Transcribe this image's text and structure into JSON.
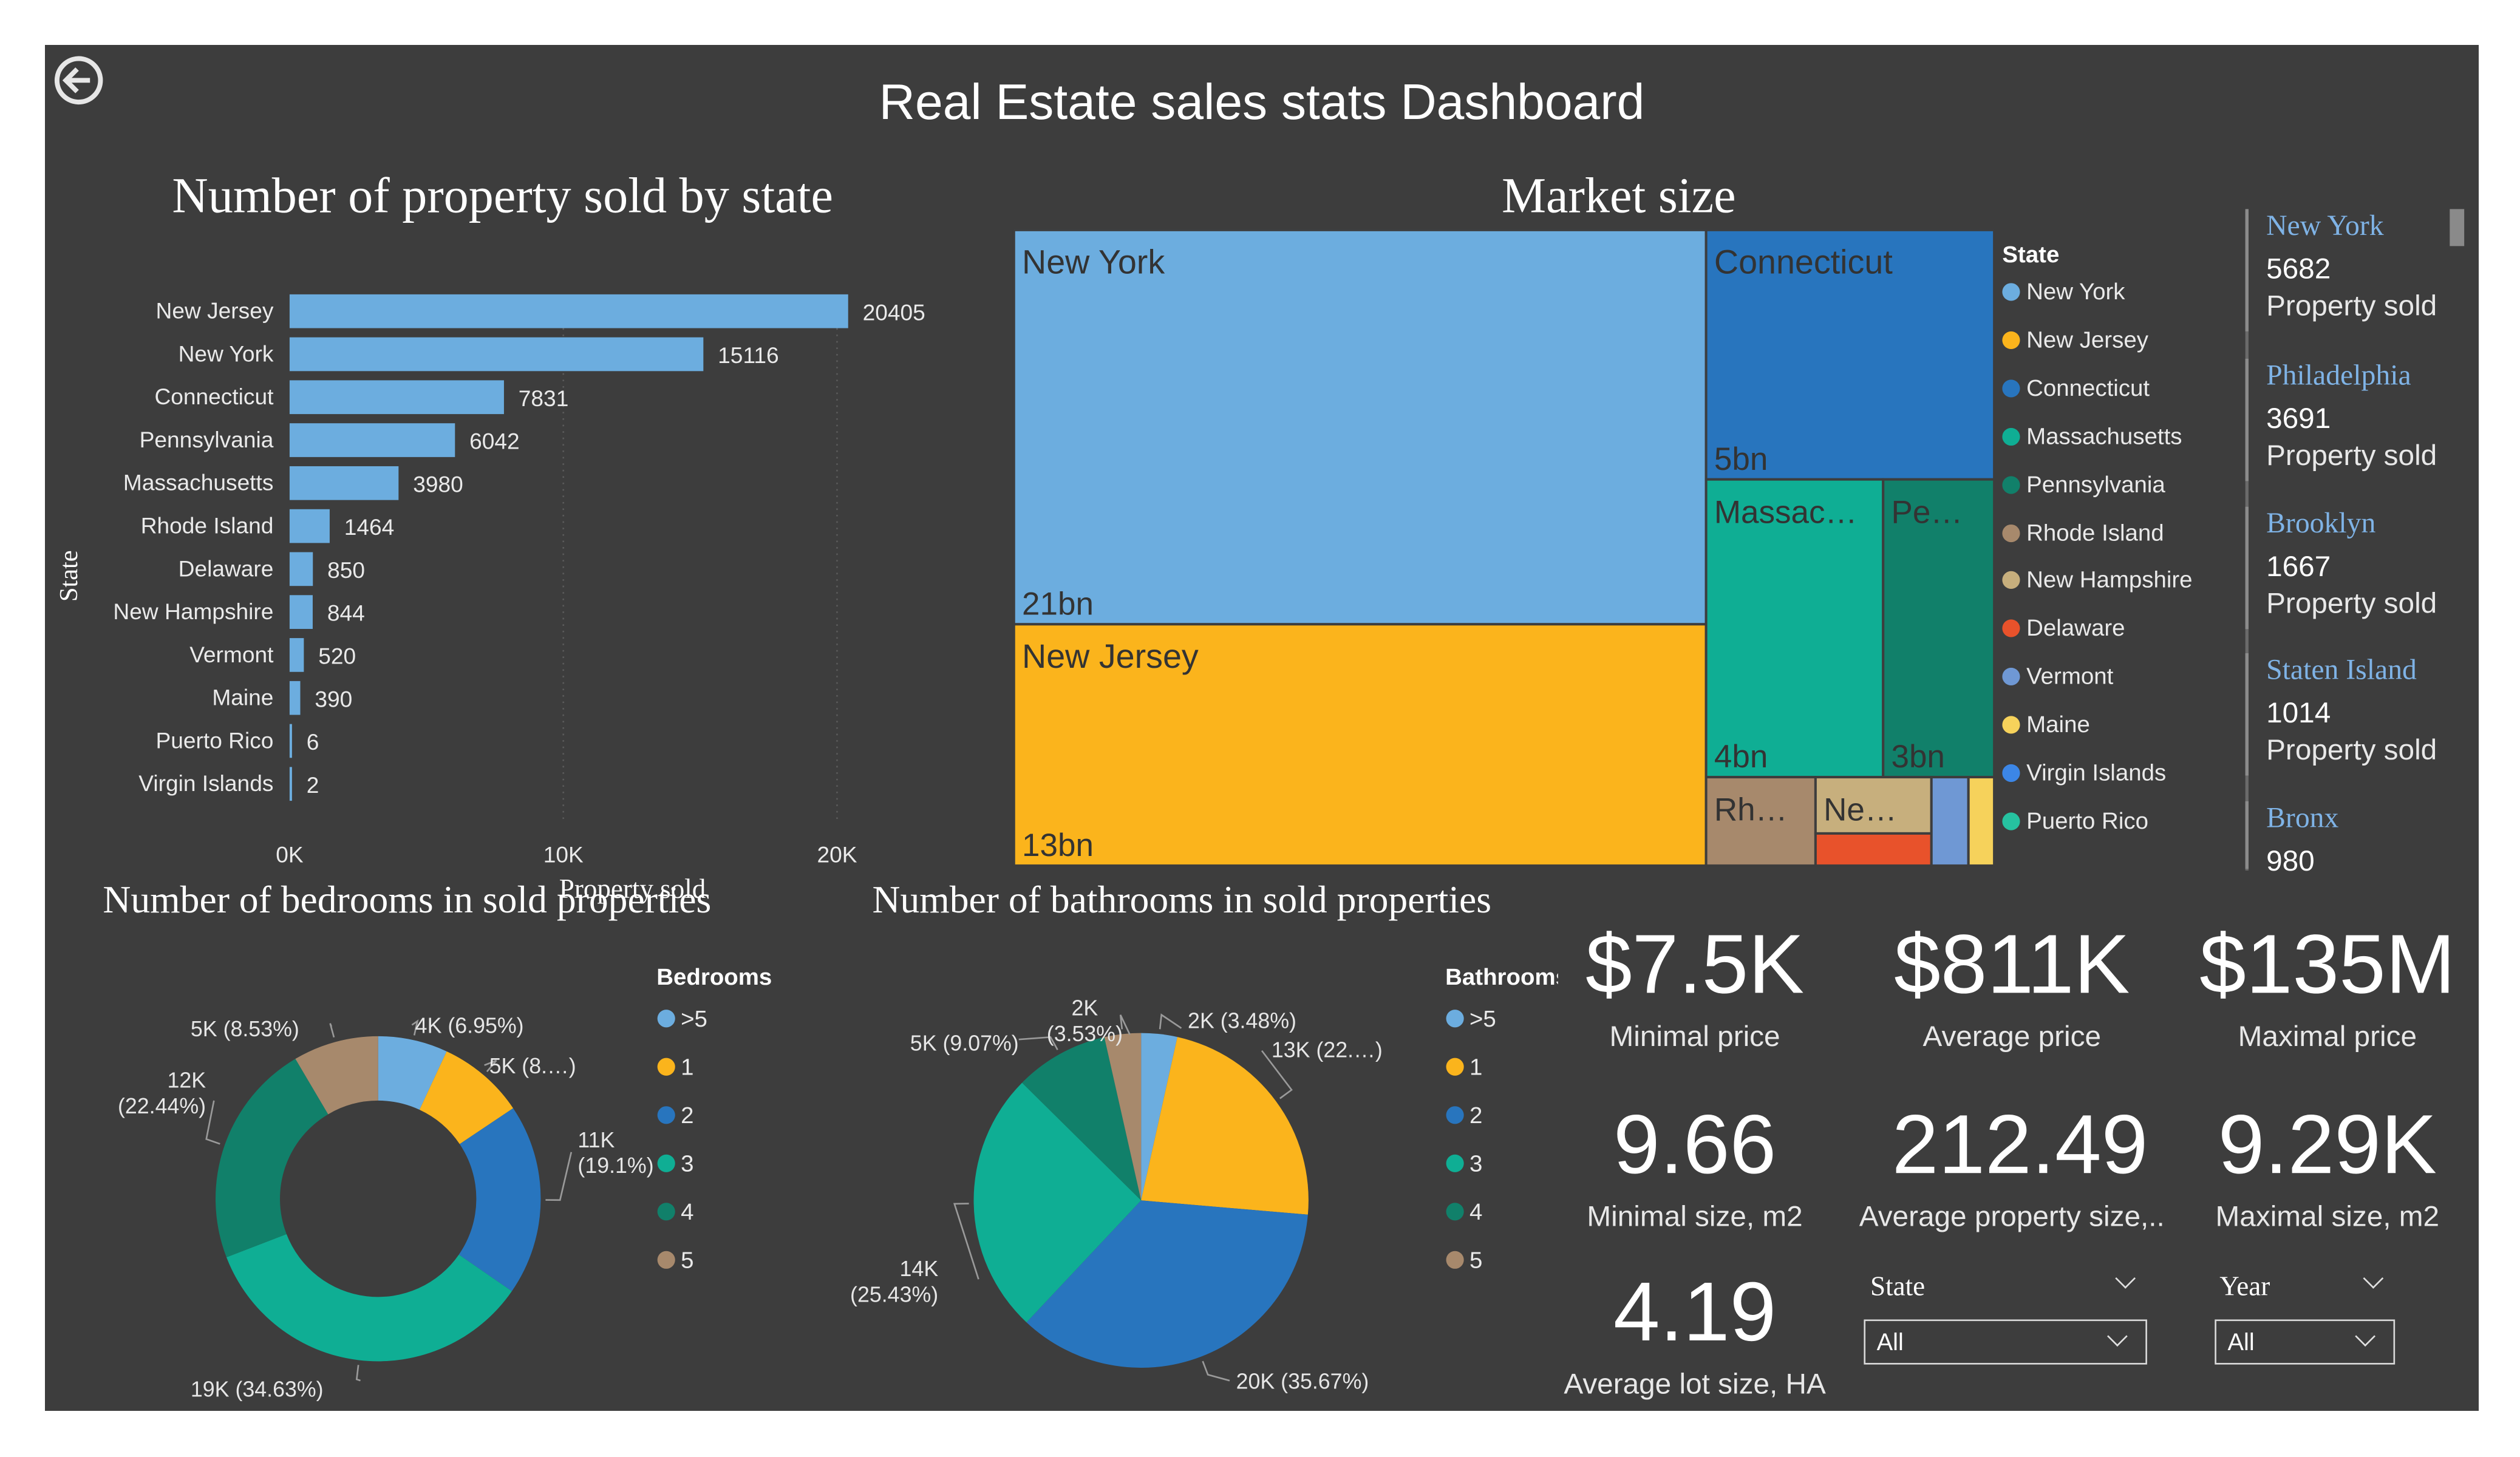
{
  "dashboard_title": "Real Estate sales stats Dashboard",
  "colors": {
    "background": "#3d3d3d",
    "bar": "#6caddf",
    "ny": "#6caddf",
    "nj": "#fbb41c",
    "ct": "#2875be",
    "ma": "#0fae94",
    "pa": "#11806a",
    "ri": "#a7896c",
    "nh": "#c7af7d",
    "de": "#e8522b",
    "vt": "#6f98d4",
    "me": "#f6d25b",
    "vi": "#3c86e6",
    "pr": "#26c2a0"
  },
  "bar_chart": {
    "title": "Number of property sold by state",
    "y_axis_label": "State",
    "x_axis_label": "Property sold",
    "chart_data": {
      "type": "bar",
      "orientation": "horizontal",
      "categories": [
        "New Jersey",
        "New York",
        "Connecticut",
        "Pennsylvania",
        "Massachusetts",
        "Rhode Island",
        "Delaware",
        "New Hampshire",
        "Vermont",
        "Maine",
        "Puerto Rico",
        "Virgin Islands"
      ],
      "values": [
        20405,
        15116,
        7831,
        6042,
        3980,
        1464,
        850,
        844,
        520,
        390,
        6,
        2
      ],
      "x_ticks": [
        "0K",
        "10K",
        "20K"
      ],
      "xlim": [
        0,
        20405
      ]
    }
  },
  "treemap": {
    "title": "Market size",
    "legend_title": "State",
    "chart_data": {
      "type": "treemap",
      "items": [
        {
          "name": "New York",
          "label": "New York",
          "value_label": "21bn",
          "color": "#6caddf"
        },
        {
          "name": "New Jersey",
          "label": "New Jersey",
          "value_label": "13bn",
          "color": "#fbb41c"
        },
        {
          "name": "Connecticut",
          "label": "Connecticut",
          "value_label": "5bn",
          "color": "#2875be"
        },
        {
          "name": "Massachusetts",
          "label": "Massac…",
          "value_label": "4bn",
          "color": "#0fae94"
        },
        {
          "name": "Pennsylvania",
          "label": "Pe…",
          "value_label": "3bn",
          "color": "#11806a"
        },
        {
          "name": "Rhode Island",
          "label": "Rh…",
          "value_label": "",
          "color": "#a7896c"
        },
        {
          "name": "New Hampshire",
          "label": "Ne…",
          "value_label": "",
          "color": "#c7af7d"
        },
        {
          "name": "Delaware",
          "label": "",
          "value_label": "",
          "color": "#e8522b"
        },
        {
          "name": "Vermont",
          "label": "",
          "value_label": "",
          "color": "#6f98d4"
        },
        {
          "name": "Maine",
          "label": "",
          "value_label": "",
          "color": "#f6d25b"
        }
      ]
    },
    "legend": [
      {
        "label": "New York",
        "color": "#6caddf"
      },
      {
        "label": "New Jersey",
        "color": "#fbb41c"
      },
      {
        "label": "Connecticut",
        "color": "#2875be"
      },
      {
        "label": "Massachusetts",
        "color": "#0fae94"
      },
      {
        "label": "Pennsylvania",
        "color": "#11806a"
      },
      {
        "label": "Rhode Island",
        "color": "#a7896c"
      },
      {
        "label": "New Hampshire",
        "color": "#c7af7d"
      },
      {
        "label": "Delaware",
        "color": "#e8522b"
      },
      {
        "label": "Vermont",
        "color": "#6f98d4"
      },
      {
        "label": "Maine",
        "color": "#f6d25b"
      },
      {
        "label": "Virgin Islands",
        "color": "#3c86e6"
      },
      {
        "label": "Puerto Rico",
        "color": "#26c2a0"
      }
    ]
  },
  "city_cards": [
    {
      "city": "New York",
      "count": "5682",
      "unit": "Property sold"
    },
    {
      "city": "Philadelphia",
      "count": "3691",
      "unit": "Property sold"
    },
    {
      "city": "Brooklyn",
      "count": "1667",
      "unit": "Property sold"
    },
    {
      "city": "Staten Island",
      "count": "1014",
      "unit": "Property sold"
    },
    {
      "city": "Bronx",
      "count": "980",
      "unit": ""
    }
  ],
  "bedrooms_chart": {
    "title": "Number of bedrooms in sold properties",
    "legend_title": "Bedrooms",
    "chart_data": {
      "type": "donut",
      "categories": [
        ">5",
        "1",
        "2",
        "3",
        "4",
        "5"
      ],
      "percent": [
        6.95,
        8.7,
        19.1,
        34.63,
        22.44,
        8.53
      ],
      "colors": [
        "#6caddf",
        "#fbb41c",
        "#2875be",
        "#0fae94",
        "#11806a",
        "#a7896c"
      ],
      "data_labels": [
        "4K (6.95%)",
        "5K (8.…)",
        "11K\n(19.1%)",
        "19K (34.63%)",
        "12K\n(22.44%)",
        "5K (8.53%)"
      ]
    }
  },
  "bathrooms_chart": {
    "title": "Number of bathrooms in sold properties",
    "legend_title": "Bathrooms",
    "chart_data": {
      "type": "pie",
      "categories": [
        ">5",
        "1",
        "2",
        "3",
        "4",
        "5"
      ],
      "percent": [
        3.48,
        22.9,
        35.67,
        25.43,
        9.07,
        3.53
      ],
      "colors": [
        "#6caddf",
        "#fbb41c",
        "#2875be",
        "#0fae94",
        "#11806a",
        "#a7896c"
      ],
      "data_labels": [
        "2K (3.48%)",
        "13K (22.…)",
        "20K (35.67%)",
        "14K\n(25.43%)",
        "5K (9.07%)",
        "2K\n(3.53%)"
      ]
    }
  },
  "kpis": [
    {
      "value": "$7.5K",
      "label": "Minimal price"
    },
    {
      "value": "$811K",
      "label": "Average price"
    },
    {
      "value": "$135M",
      "label": "Maximal price"
    },
    {
      "value": "9.66",
      "label": "Minimal size, m2"
    },
    {
      "value": "212.49",
      "label": "Average property size,.."
    },
    {
      "value": "9.29K",
      "label": "Maximal size, m2"
    },
    {
      "value": "4.19",
      "label": "Average lot size, HA"
    }
  ],
  "slicers": {
    "state": {
      "label": "State",
      "value": "All"
    },
    "year": {
      "label": "Year",
      "value": "All"
    }
  }
}
